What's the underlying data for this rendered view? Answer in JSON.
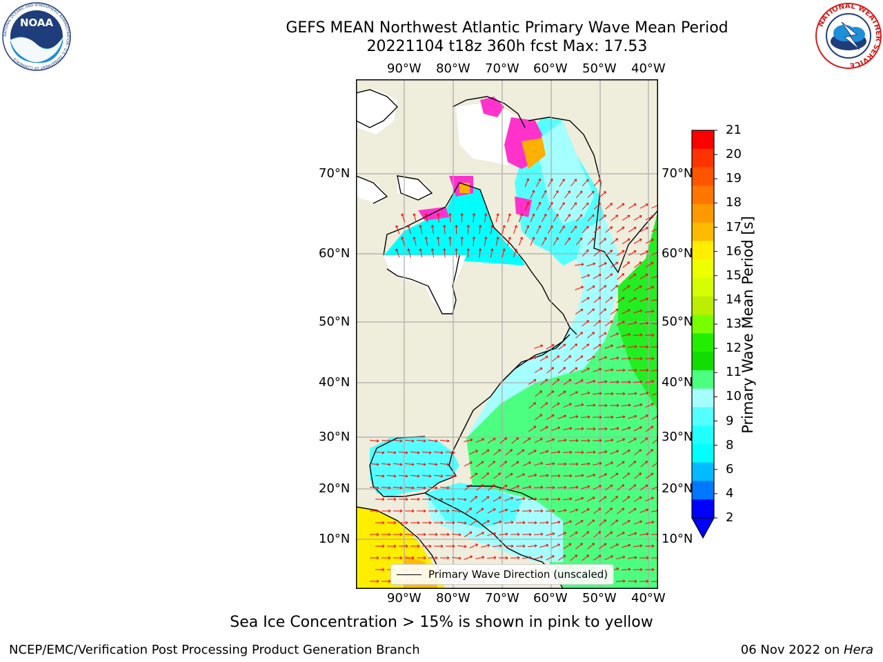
{
  "header": {
    "title_line1": "GEFS MEAN Northwest Atlantic Primary Wave Mean Period",
    "title_line2": "20221104 t18z 360h fcst   Max: 17.53"
  },
  "logos": {
    "left": {
      "name": "NOAA",
      "ring_text": "NATIONAL OCEANIC AND ATMOSPHERIC ADMINISTRATION · U.S. DEPARTMENT OF COMMERCE"
    },
    "right": {
      "ring_text": "NATIONAL WEATHER SERVICE"
    }
  },
  "map": {
    "lon_labels": [
      "90°W",
      "80°W",
      "70°W",
      "60°W",
      "50°W",
      "40°W"
    ],
    "lat_labels": [
      "70°N",
      "60°N",
      "50°N",
      "40°N",
      "30°N",
      "20°N",
      "10°N"
    ],
    "legend_label": "Primary Wave Direction (unscaled)",
    "colors": {
      "land": "#efeddb",
      "ice_free_land": "#ffffff",
      "cyan": "#00ffff",
      "light_cyan": "#a6ffff",
      "green": "#4dff80",
      "bright_green": "#1aea1a",
      "yellow": "#ffee00",
      "orange": "#ffb000",
      "pink": "#ff33cc",
      "arrow": "#ff0000"
    }
  },
  "colorbar": {
    "label": "Primary Wave Mean Period [s]",
    "ticks": [
      "21",
      "20",
      "19",
      "18",
      "17",
      "16",
      "15",
      "14",
      "13",
      "12",
      "11",
      "10",
      "9",
      "8",
      "6",
      "4",
      "2"
    ],
    "colors": [
      "#ff0000",
      "#ff3300",
      "#ff5500",
      "#ff7700",
      "#ff9900",
      "#ffbb00",
      "#ffee00",
      "#eeff00",
      "#d5ff00",
      "#bbee00",
      "#77ff00",
      "#22ee00",
      "#11dd00",
      "#4dff80",
      "#a6ffff",
      "#55ffff",
      "#22ffff",
      "#00ffff",
      "#00bbff",
      "#0077ff",
      "#0000ff"
    ]
  },
  "notes": {
    "sea_ice": "Sea Ice Concentration > 15% is shown in pink to yellow"
  },
  "footer": {
    "left": "NCEP/EMC/Verification Post Processing Product Generation Branch",
    "date": "06 Nov 2022 on ",
    "host": "Hera"
  }
}
